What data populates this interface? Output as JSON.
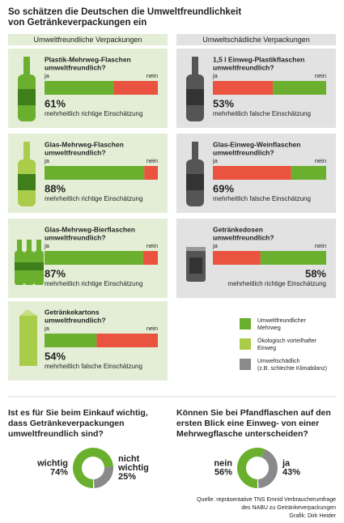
{
  "title": [
    "So schätzen die Deutschen die Umweltfreundlichkeit",
    "von Getränkeverpackungen ein"
  ],
  "labels": {
    "yes": "ja",
    "no": "nein"
  },
  "columns": [
    {
      "heading": "Umweltfreundliche Verpackungen",
      "background": "#e4eed6",
      "panels": [
        {
          "name": "Plastik-Mehrweg-Flaschen",
          "question": "umweltfreundlich?",
          "values": [
            61,
            39
          ],
          "colors": [
            "#6ab02e",
            "#e9533f"
          ],
          "result": "61%",
          "assessment": "mehrheitlich richtige Einschätzung",
          "result_color": "#6ab02e"
        },
        {
          "name": "Glas-Mehrweg-Flaschen",
          "question": "umweltfreundlich?",
          "values": [
            88,
            12
          ],
          "colors": [
            "#6ab02e",
            "#e9533f"
          ],
          "result": "88%",
          "assessment": "mehrheitlich richtige Einschätzung",
          "result_color": "#6ab02e"
        },
        {
          "name": "Glas-Mehrweg-Bierflaschen",
          "question": "umweltfreundlich?",
          "values": [
            87,
            13
          ],
          "colors": [
            "#6ab02e",
            "#e9533f"
          ],
          "result": "87%",
          "assessment": "mehrheitlich richtige Einschätzung",
          "result_color": "#6ab02e"
        },
        {
          "name": "Getränkekartons",
          "question": "umweltfreundlich?",
          "values": [
            46,
            54
          ],
          "colors": [
            "#6ab02e",
            "#e9533f"
          ],
          "result": "54%",
          "assessment": "mehrheitlich falsche Einschätzung",
          "result_color": "#e9533f"
        }
      ]
    },
    {
      "heading": "Umweltschädliche Verpackungen",
      "background": "#e2e2e2",
      "panels": [
        {
          "name": "1,5 l Einweg-Plastikflaschen",
          "question": "umweltfreundlich?",
          "values": [
            53,
            47
          ],
          "colors": [
            "#e9533f",
            "#6ab02e"
          ],
          "result": "53%",
          "assessment": "mehrheitlich falsche Einschätzung",
          "result_color": "#e9533f"
        },
        {
          "name": "Glas-Einweg-Weinflaschen",
          "question": "umweltfreundlich?",
          "values": [
            69,
            31
          ],
          "colors": [
            "#e9533f",
            "#6ab02e"
          ],
          "result": "69%",
          "assessment": "mehrheitlich falsche Einschätzung",
          "result_color": "#e9533f"
        },
        {
          "name": "Getränkedosen",
          "question": "umweltfreundlich?",
          "values": [
            42,
            58
          ],
          "colors": [
            "#e9533f",
            "#6ab02e"
          ],
          "result": "58%",
          "assessment": "mehrheitlich richtige Einschätzung",
          "result_color": "#6ab02e"
        }
      ]
    }
  ],
  "legend": [
    {
      "color": "#6ab02e",
      "lines": [
        "Umweltfreundlicher",
        "Mehrweg"
      ]
    },
    {
      "color": "#a9cd4a",
      "lines": [
        "Ökologisch vorteilhafter",
        "Einweg"
      ]
    },
    {
      "color": "#8a8a8a",
      "lines": [
        "Umweltschädlich",
        "(z.B. schlechte Klimabilanz)"
      ]
    }
  ],
  "donuts": [
    {
      "question": [
        "Ist es für Sie beim Einkauf wichtig,",
        "dass Getränkeverpackungen",
        "umweltfreundlich sind?"
      ],
      "labels": [
        [
          "wichtig"
        ],
        [
          "nicht",
          "wichtig"
        ]
      ],
      "values": [
        74,
        25
      ],
      "value_labels": [
        "74%",
        "25%"
      ],
      "colors": [
        "#6ab02e",
        "#8a8a8a"
      ]
    },
    {
      "question": [
        "Können Sie bei Pfandflaschen auf den",
        "ersten Blick eine Einweg- von einer",
        "Mehrwegflasche unterscheiden?"
      ],
      "labels": [
        [
          "nein"
        ],
        [
          "ja"
        ]
      ],
      "values": [
        56,
        43
      ],
      "value_labels": [
        "56%",
        "43%"
      ],
      "colors": [
        "#6ab02e",
        "#8a8a8a"
      ]
    }
  ],
  "source": [
    "Quelle: repräsentative TNS Emnid Verbraucherumfrage",
    "des NABU zu Getränkeverpackungen",
    "Grafik: Dirk Heider"
  ]
}
